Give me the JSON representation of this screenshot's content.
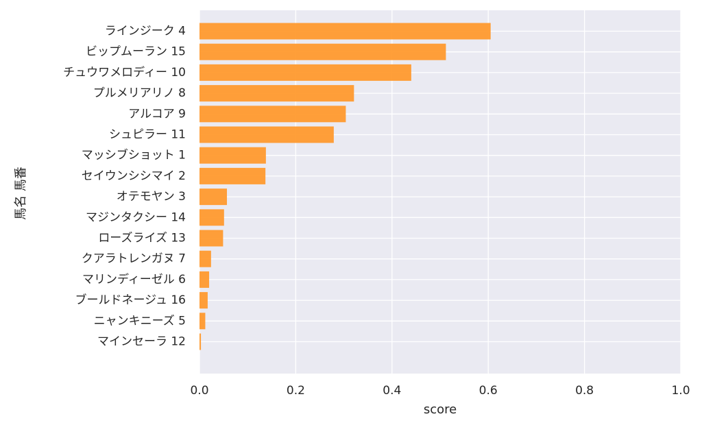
{
  "chart_data": {
    "type": "bar",
    "orientation": "horizontal",
    "title": "",
    "xlabel": "score",
    "ylabel": "馬名 馬番",
    "xlim": [
      0,
      1
    ],
    "xticks": [
      "0.0",
      "0.2",
      "0.4",
      "0.6",
      "0.8",
      "1.0"
    ],
    "grid": true,
    "bar_color": "#ff9a2e",
    "background_color": "#eaeaf2",
    "categories": [
      "ラインジーク 4",
      "ビップムーラン 15",
      "チュウワメロディー 10",
      "プルメリアリノ 8",
      "アルコア 9",
      "シュピラー 11",
      "マッシブショット 1",
      "セイウンシシマイ 2",
      "オテモヤン 3",
      "マジンタクシー 14",
      "ローズライズ 13",
      "クアラトレンガヌ 7",
      "マリンディーゼル 6",
      "ブールドネージュ 16",
      "ニャンキニーズ 5",
      "マインセーラ 12"
    ],
    "values": [
      0.605,
      0.512,
      0.44,
      0.321,
      0.304,
      0.279,
      0.138,
      0.137,
      0.057,
      0.051,
      0.049,
      0.024,
      0.02,
      0.017,
      0.012,
      0.003
    ]
  }
}
